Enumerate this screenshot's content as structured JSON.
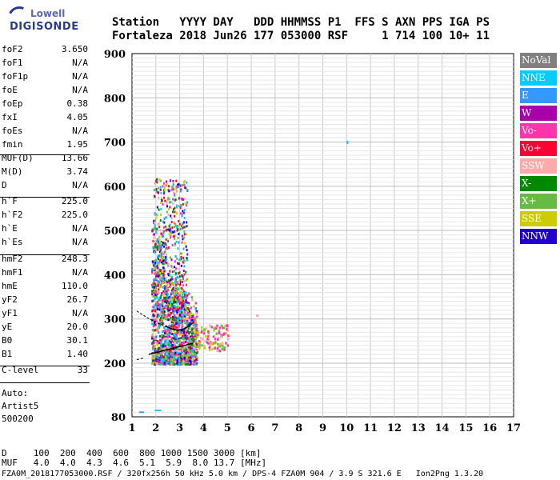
{
  "logo": {
    "line1": "Lowell",
    "line2": "DIGISONDE"
  },
  "header": {
    "row1": "Station   YYYY DAY   DDD HHMMSS P1  FFS S AXN PPS IGA PS",
    "row2": "Fortaleza 2018 Jun26 177 053000 RSF     1 714 100 10+ 11"
  },
  "params": [
    {
      "k": "foF2",
      "v": "3.650"
    },
    {
      "k": "foF1",
      "v": "N/A"
    },
    {
      "k": "foF1p",
      "v": "N/A"
    },
    {
      "k": "foE",
      "v": "N/A"
    },
    {
      "k": "foEp",
      "v": "0.38"
    },
    {
      "k": "fxI",
      "v": "4.05"
    },
    {
      "k": "foEs",
      "v": "N/A"
    },
    {
      "k": "fmin",
      "v": "1.95"
    },
    {
      "k": "MUF(D)",
      "v": "13.66"
    },
    {
      "k": "M(D)",
      "v": "3.74"
    },
    {
      "k": "D",
      "v": "N/A"
    },
    {
      "k": "h`F",
      "v": "225.0"
    },
    {
      "k": "h`F2",
      "v": "225.0"
    },
    {
      "k": "h`E",
      "v": "N/A"
    },
    {
      "k": "h`Es",
      "v": "N/A"
    },
    {
      "k": "hmF2",
      "v": "248.3"
    },
    {
      "k": "hmF1",
      "v": "N/A"
    },
    {
      "k": "hmE",
      "v": "110.0"
    },
    {
      "k": "yF2",
      "v": "26.7"
    },
    {
      "k": "yF1",
      "v": "N/A"
    },
    {
      "k": "yE",
      "v": "20.0"
    },
    {
      "k": "B0",
      "v": "30.1"
    },
    {
      "k": "B1",
      "v": "1.40"
    },
    {
      "k": "C-level",
      "v": "33"
    }
  ],
  "auto": {
    "l1": "Auto:",
    "l2": "Artist5",
    "l3": "500200"
  },
  "legend": [
    {
      "label": "NoVal",
      "color": "#808080"
    },
    {
      "label": "NNE",
      "color": "#00ccff"
    },
    {
      "label": "E",
      "color": "#3399ff"
    },
    {
      "label": "W",
      "color": "#aa00aa"
    },
    {
      "label": "Vo-",
      "color": "#ff33aa"
    },
    {
      "label": "Vo+",
      "color": "#ff0033"
    },
    {
      "label": "SSW",
      "color": "#ffaaaa"
    },
    {
      "label": "X-",
      "color": "#008800"
    },
    {
      "label": "X+",
      "color": "#66bb44"
    },
    {
      "label": "SSE",
      "color": "#cccc00"
    },
    {
      "label": "NNW",
      "color": "#2200cc"
    }
  ],
  "footer": {
    "row1": "D     100  200  400  600  800 1000 1500 3000 [km]",
    "row2": "MUF   4.0  4.0  4.3  4.6  5.1  5.9  8.0 13.7 [MHz]",
    "row3": "FZA0M_2018177053000.RSF / 320fx256h 50 kHz 5.0 km / DPS-4 FZA0M 904 / 3.9 S 321.6 E   Ion2Png 1.3.20"
  },
  "chart_data": {
    "type": "scatter",
    "xlim": [
      1,
      17
    ],
    "ylim": [
      80,
      900
    ],
    "xticks": [
      "1",
      "2",
      "3",
      "4",
      "5",
      "6",
      "7",
      "8",
      "9",
      "10",
      "11",
      "12",
      "13",
      "14",
      "15",
      "16",
      "17"
    ],
    "yticks": [
      "80",
      "200",
      "300",
      "400",
      "500",
      "600",
      "700",
      "800",
      "900"
    ],
    "grid": true
  }
}
